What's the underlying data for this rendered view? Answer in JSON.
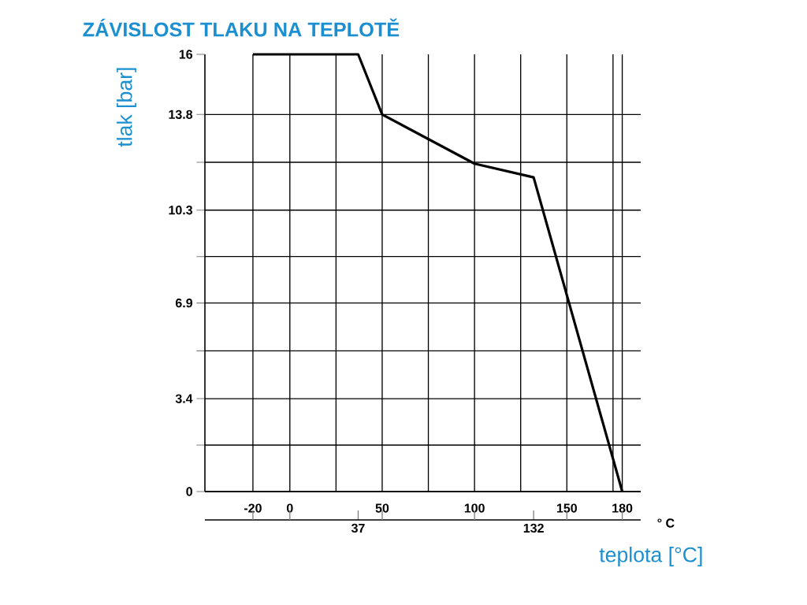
{
  "chart_data": {
    "type": "line",
    "title": "ZÁVISLOST TLAKU NA TEPLOTĚ",
    "xlabel": "teplota [°C]",
    "ylabel": "tlak [bar]",
    "annotations": [
      "° C"
    ],
    "x": [
      -20,
      37,
      50,
      100,
      132,
      180
    ],
    "series": [
      {
        "color": "#000000",
        "values": [
          16,
          16,
          13.8,
          12,
          11.5,
          0
        ]
      }
    ],
    "xlim": [
      -46,
      190
    ],
    "ylim": [
      0,
      16
    ],
    "xticks": [
      -20,
      0,
      {
        "value": 25,
        "label": null
      },
      50,
      {
        "value": 75,
        "label": null
      },
      100,
      {
        "value": 125,
        "label": null
      },
      150,
      {
        "value": 175,
        "label": null
      },
      180
    ],
    "x2lim": [
      -46,
      190
    ],
    "x2ticks": [
      37,
      132
    ],
    "yticks": [
      0,
      {
        "value": 1.7,
        "label": null
      },
      3.4,
      {
        "value": 5.15,
        "label": null
      },
      6.9,
      {
        "value": 8.6,
        "label": null
      },
      10.3,
      {
        "value": 12.05,
        "label": null
      },
      13.8,
      16
    ],
    "grid": true,
    "marker": "none",
    "line_style": "solid"
  }
}
